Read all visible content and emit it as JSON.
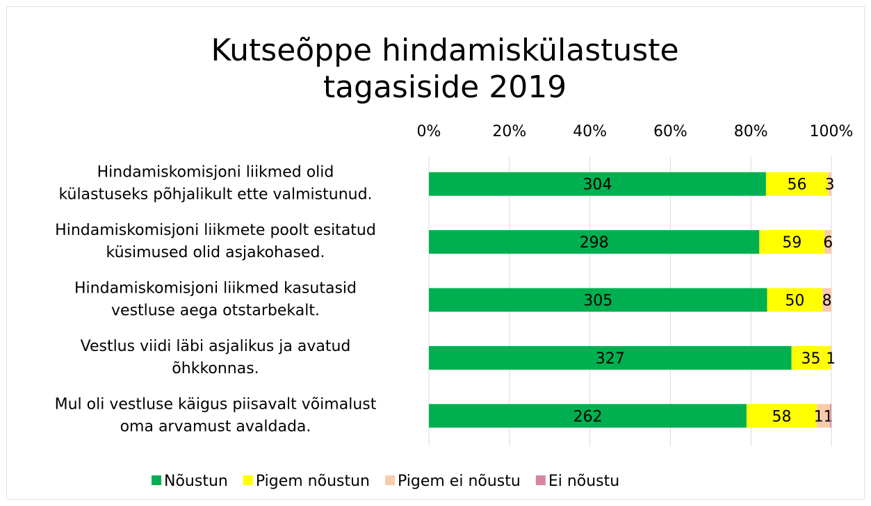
{
  "chart_data": {
    "type": "bar",
    "orientation": "horizontal",
    "stacking": "percent",
    "title": [
      "Kutseõppe hindamiskülastuste",
      "tagasiside 2019"
    ],
    "categories": [
      [
        "Hindamiskomisjoni liikmed olid",
        "külastuseks põhjalikult ette valmistunud."
      ],
      [
        "Hindamiskomisjoni liikmete poolt esitatud",
        "küsimused olid asjakohased."
      ],
      [
        "Hindamiskomisjoni liikmed kasutasid",
        "vestluse aega otstarbekalt."
      ],
      [
        "Vestlus viidi läbi asjalikus ja avatud",
        "õhkkonnas."
      ],
      [
        "Mul oli vestluse käigus piisavalt võimalust",
        "oma arvamust avaldada."
      ]
    ],
    "series": [
      {
        "name": "Nõustun",
        "color": "#00b050",
        "show_labels": true,
        "values": [
          304,
          298,
          305,
          327,
          262
        ]
      },
      {
        "name": "Pigem nõustun",
        "color": "#ffff00",
        "show_labels": true,
        "values": [
          56,
          59,
          50,
          35,
          58
        ]
      },
      {
        "name": "Pigem ei nõustu",
        "color": "#f8cbad",
        "show_labels": true,
        "values": [
          3,
          6,
          8,
          1,
          11
        ]
      },
      {
        "name": "Ei nõustu",
        "color": "#d5869d",
        "show_labels": false,
        "values": [
          0,
          0,
          0,
          0,
          1
        ]
      }
    ],
    "xlim": [
      0,
      100
    ],
    "xticks": [
      {
        "value": 0,
        "label": "0%"
      },
      {
        "value": 20,
        "label": "20%"
      },
      {
        "value": 40,
        "label": "40%"
      },
      {
        "value": 60,
        "label": "60%"
      },
      {
        "value": 80,
        "label": "80%"
      },
      {
        "value": 100,
        "label": "100%"
      }
    ],
    "grid": true,
    "legend": "bottom"
  }
}
